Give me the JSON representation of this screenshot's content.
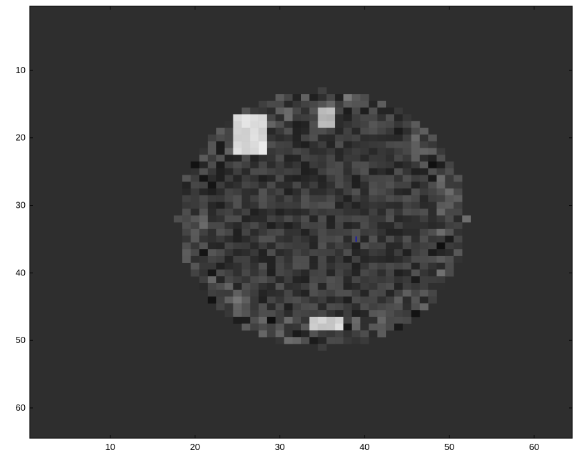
{
  "chart_data": {
    "type": "heatmap",
    "title": "",
    "xlabel": "",
    "ylabel": "",
    "colormap": "gray",
    "background_value_color": "#2e2e2e",
    "xlim": [
      0.5,
      64.5
    ],
    "ylim": [
      64.5,
      0.5
    ],
    "y_axis_direction": "down",
    "x_ticks": [
      10,
      20,
      30,
      40,
      50,
      60
    ],
    "y_ticks": [
      10,
      20,
      30,
      40,
      50,
      60
    ],
    "x_tick_labels": [
      "10",
      "20",
      "30",
      "40",
      "50",
      "60"
    ],
    "y_tick_labels": [
      "10",
      "20",
      "30",
      "40",
      "50",
      "60"
    ],
    "grid": false,
    "region": {
      "description_shape": "disk",
      "center_col": 35,
      "center_row": 32,
      "radius_cols": 17,
      "radius_rows": 19
    },
    "bright_blobs": [
      {
        "col_range": [
          25,
          28
        ],
        "row_range": [
          17,
          22
        ],
        "intensity": 0.92
      },
      {
        "col_range": [
          35,
          36
        ],
        "row_range": [
          16,
          18
        ],
        "intensity": 0.8
      },
      {
        "col_range": [
          34,
          37
        ],
        "row_range": [
          47,
          48
        ],
        "intensity": 0.88
      }
    ],
    "marker": {
      "x": 39,
      "y": 35,
      "color": "#1010c0"
    }
  }
}
